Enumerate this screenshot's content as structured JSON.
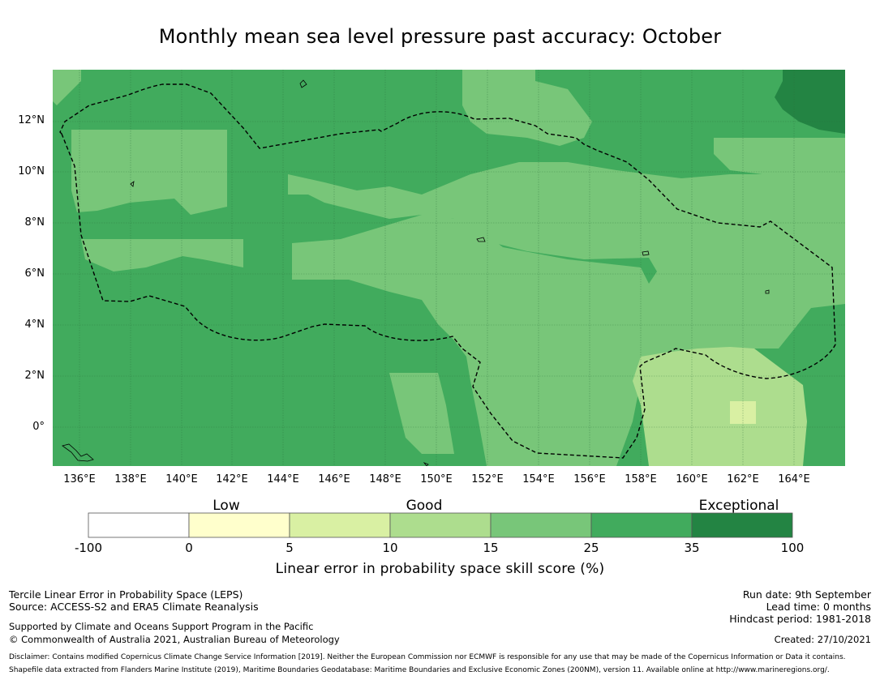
{
  "title": "Monthly mean sea level pressure past accuracy: October",
  "map": {
    "latitude_labels": [
      "12°N",
      "10°N",
      "8°N",
      "6°N",
      "4°N",
      "2°N",
      "0°"
    ],
    "longitude_labels": [
      "136°E",
      "138°E",
      "140°E",
      "142°E",
      "144°E",
      "146°E",
      "148°E",
      "150°E",
      "152°E",
      "154°E",
      "156°E",
      "158°E",
      "160°E",
      "162°E",
      "164°E"
    ],
    "gridlines": true,
    "boundary_style": "dashed"
  },
  "colorbar": {
    "categories": [
      "Low",
      "Good",
      "Exceptional"
    ],
    "ticks": [
      "-100",
      "0",
      "5",
      "10",
      "15",
      "25",
      "35",
      "100"
    ],
    "colors": [
      "#ffffff",
      "#ffffcc",
      "#d9f0a3",
      "#addd8e",
      "#78c679",
      "#41ab5d",
      "#238443"
    ],
    "title": "Linear error in probability space skill score (%)"
  },
  "footer": {
    "left_line1": "Tercile Linear Error in Probability Space (LEPS)",
    "left_line2": "Source: ACCESS-S2 and ERA5 Climate Reanalysis",
    "support_line1": "Supported by Climate and Oceans Support Program in the Pacific",
    "support_line2": "© Commonwealth of Australia 2021, Australian Bureau of Meteorology",
    "run_date": "Run date: 9th September",
    "lead_time": "Lead time: 0 months",
    "hindcast": "Hindcast period: 1981-2018",
    "created": "Created: 27/10/2021",
    "disclaimer1": "Disclaimer: Contains modified Copernicus Climate Change Service Information [2019]. Neither the European Commission nor ECMWF is responsible for any use that may be made of the Copernicus Information or Data it contains.",
    "disclaimer2": "Shapefile data extracted from Flanders Marine Institute (2019), Maritime Boundaries Geodatabase: Maritime Boundaries and Exclusive Economic Zones (200NM), version 11. Available online at http://www.marineregions.org/."
  }
}
